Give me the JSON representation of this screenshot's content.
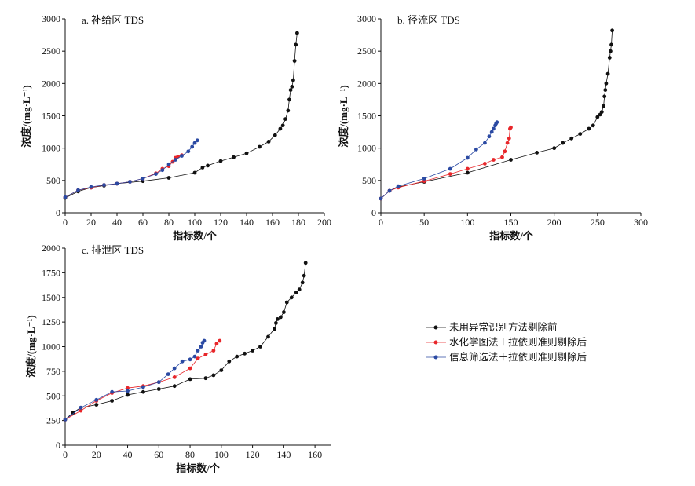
{
  "chart_data": [
    {
      "type": "scatter",
      "title": "a. 补给区 TDS",
      "xlabel": "指标数/个",
      "ylabel": "浓度/(mg·L⁻¹)",
      "xlim": [
        0,
        200
      ],
      "ylim": [
        0,
        3000
      ],
      "xticks": [
        "0",
        "20",
        "40",
        "60",
        "80",
        "100",
        "120",
        "140",
        "160",
        "180",
        "200"
      ],
      "yticks": [
        "0",
        "500",
        "1000",
        "1500",
        "2000",
        "2500",
        "3000"
      ],
      "series": [
        {
          "name": "未用异常识别方法剔除前",
          "x": [
            0,
            10,
            20,
            30,
            40,
            60,
            80,
            100,
            106,
            110,
            120,
            130,
            140,
            150,
            157,
            162,
            166,
            168,
            170,
            172,
            173,
            174,
            175,
            176,
            177,
            178,
            179
          ],
          "y": [
            230,
            330,
            390,
            420,
            450,
            490,
            540,
            620,
            700,
            730,
            800,
            860,
            920,
            1020,
            1100,
            1200,
            1300,
            1350,
            1450,
            1580,
            1750,
            1900,
            1950,
            2050,
            2350,
            2600,
            2780
          ]
        },
        {
          "name": "水化学图法＋拉依则准则剔除后",
          "x": [
            0,
            10,
            20,
            30,
            40,
            50,
            60,
            70,
            75,
            80,
            83,
            85,
            87,
            90
          ],
          "y": [
            240,
            350,
            390,
            430,
            450,
            480,
            530,
            610,
            680,
            720,
            790,
            850,
            870,
            890
          ]
        },
        {
          "name": "信息筛选法＋拉依则准则剔除后",
          "x": [
            0,
            10,
            20,
            30,
            40,
            50,
            60,
            70,
            75,
            80,
            85,
            90,
            95,
            98,
            100,
            102
          ],
          "y": [
            240,
            350,
            400,
            430,
            450,
            480,
            530,
            600,
            660,
            750,
            820,
            880,
            950,
            1020,
            1080,
            1120
          ]
        }
      ]
    },
    {
      "type": "scatter",
      "title": "b. 径流区 TDS",
      "xlabel": "指标数/个",
      "ylabel": "浓度/(mg·L⁻¹)",
      "xlim": [
        0,
        300
      ],
      "ylim": [
        0,
        3000
      ],
      "xticks": [
        "0",
        "50",
        "100",
        "150",
        "200",
        "250",
        "300"
      ],
      "yticks": [
        "0",
        "500",
        "1000",
        "1500",
        "2000",
        "2500",
        "3000"
      ],
      "series": [
        {
          "name": "未用异常识别方法剔除前",
          "x": [
            0,
            10,
            20,
            50,
            100,
            150,
            180,
            200,
            210,
            220,
            230,
            240,
            245,
            250,
            253,
            255,
            257,
            258,
            259,
            260,
            262,
            264,
            265,
            266,
            267
          ],
          "y": [
            220,
            340,
            400,
            480,
            620,
            820,
            930,
            1000,
            1080,
            1150,
            1220,
            1300,
            1350,
            1480,
            1520,
            1560,
            1650,
            1800,
            1900,
            2000,
            2150,
            2400,
            2500,
            2600,
            2820
          ]
        },
        {
          "name": "水化学图法＋拉依则准则剔除后",
          "x": [
            0,
            10,
            20,
            50,
            80,
            100,
            120,
            130,
            140,
            143,
            146,
            148,
            149,
            150
          ],
          "y": [
            220,
            340,
            390,
            490,
            600,
            680,
            760,
            820,
            860,
            950,
            1080,
            1150,
            1300,
            1320
          ]
        },
        {
          "name": "信息筛选法＋拉依则准则剔除后",
          "x": [
            0,
            10,
            20,
            50,
            80,
            100,
            110,
            120,
            125,
            128,
            130,
            132,
            133,
            134
          ],
          "y": [
            220,
            340,
            410,
            530,
            680,
            850,
            980,
            1080,
            1180,
            1250,
            1300,
            1350,
            1380,
            1400
          ]
        }
      ]
    },
    {
      "type": "scatter",
      "title": "c. 排泄区 TDS",
      "xlabel": "指标数/个",
      "ylabel": "浓度/(mg·L⁻¹)",
      "xlim": [
        0,
        170
      ],
      "ylim": [
        0,
        2000
      ],
      "xticks": [
        "0",
        "20",
        "40",
        "60",
        "80",
        "100",
        "120",
        "140",
        "160"
      ],
      "yticks": [
        "0",
        "250",
        "500",
        "750",
        "1000",
        "1250",
        "1500",
        "1750",
        "2000"
      ],
      "series": [
        {
          "name": "未用异常识别方法剔除前",
          "x": [
            0,
            5,
            10,
            20,
            30,
            40,
            50,
            60,
            70,
            80,
            90,
            95,
            100,
            105,
            110,
            115,
            120,
            125,
            130,
            134,
            135,
            136,
            138,
            140,
            142,
            145,
            148,
            150,
            152,
            153,
            154
          ],
          "y": [
            260,
            330,
            380,
            410,
            450,
            510,
            540,
            570,
            600,
            670,
            680,
            710,
            760,
            850,
            900,
            930,
            960,
            1000,
            1100,
            1180,
            1240,
            1280,
            1300,
            1350,
            1450,
            1500,
            1550,
            1580,
            1650,
            1720,
            1850
          ]
        },
        {
          "name": "水化学图法＋拉依则准则剔除后",
          "x": [
            0,
            10,
            20,
            30,
            40,
            50,
            60,
            70,
            80,
            85,
            90,
            95,
            97,
            99
          ],
          "y": [
            260,
            350,
            450,
            530,
            580,
            600,
            640,
            690,
            780,
            880,
            920,
            960,
            1030,
            1060
          ]
        },
        {
          "name": "信息筛选法＋拉依则准则剔除后",
          "x": [
            0,
            10,
            20,
            30,
            40,
            50,
            60,
            66,
            70,
            75,
            80,
            83,
            85,
            87,
            88,
            89
          ],
          "y": [
            260,
            380,
            460,
            540,
            550,
            590,
            640,
            720,
            780,
            850,
            870,
            900,
            960,
            1000,
            1040,
            1060
          ]
        }
      ]
    }
  ],
  "legend": {
    "position": "right",
    "items": [
      "未用异常识别方法剔除前",
      "水化学图法＋拉依则准则剔除后",
      "信息筛选法＋拉依则准则剔除后"
    ]
  },
  "colors": {
    "series": [
      "#111111",
      "#e8262a",
      "#2b4aa3"
    ],
    "axis": "#111111"
  }
}
